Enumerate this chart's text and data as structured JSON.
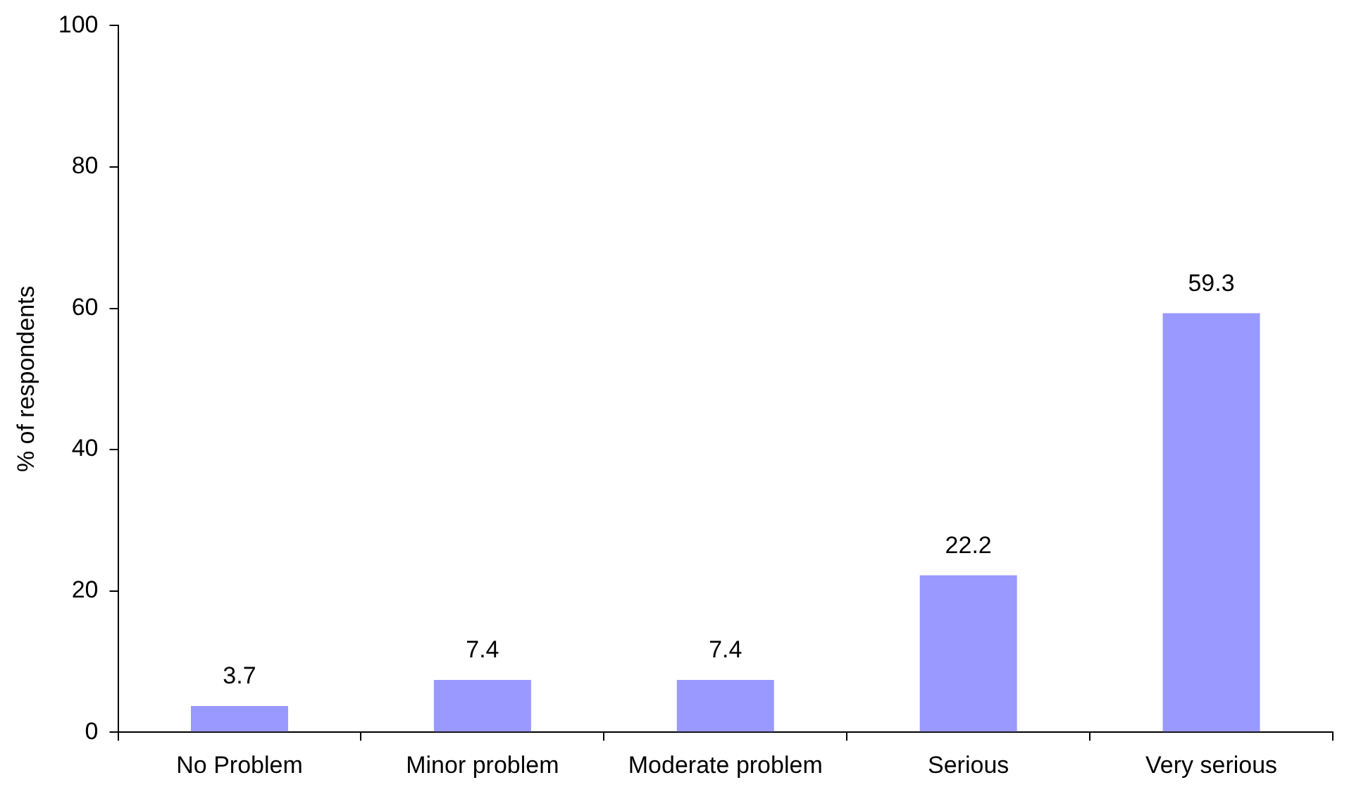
{
  "chart_data": {
    "type": "bar",
    "ylabel": "% of respondents",
    "categories": [
      "No Problem",
      "Minor problem",
      "Moderate problem",
      "Serious",
      "Very serious"
    ],
    "values": [
      3.7,
      7.4,
      7.4,
      22.2,
      59.3
    ],
    "color": "#9999ff",
    "ylim": [
      0,
      100
    ],
    "yticks": [
      0,
      20,
      40,
      60,
      80,
      100
    ],
    "grid": false,
    "data_labels": true,
    "legend": false
  }
}
